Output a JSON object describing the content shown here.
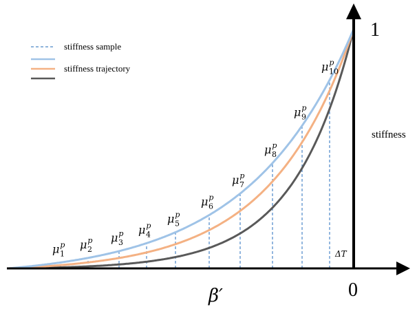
{
  "figure": {
    "legend": [
      {
        "label": "stiffness sample",
        "color": "#4a86c8",
        "style": "dashed"
      },
      {
        "label": "stiffness trajectory",
        "color": "#9fc3e7",
        "style": "solid"
      },
      {
        "label": "",
        "color": "#f4b183",
        "style": "solid"
      },
      {
        "label": "",
        "color": "#595959",
        "style": "solid"
      }
    ],
    "y_axis_label": "stiffness",
    "y_tick_top": "1",
    "x_axis_label": "β′",
    "x_origin_label": "0",
    "delta_label": "ΔT",
    "samples": [
      {
        "sym": "μ",
        "sub": "1",
        "sup": "p"
      },
      {
        "sym": "μ",
        "sub": "2",
        "sup": "p"
      },
      {
        "sym": "μ",
        "sub": "3",
        "sup": "p"
      },
      {
        "sym": "μ",
        "sub": "4",
        "sup": "p"
      },
      {
        "sym": "μ",
        "sub": "5",
        "sup": "p"
      },
      {
        "sym": "μ",
        "sub": "6",
        "sup": "p"
      },
      {
        "sym": "μ",
        "sub": "7",
        "sup": "p"
      },
      {
        "sym": "μ",
        "sub": "8",
        "sup": "p"
      },
      {
        "sym": "μ",
        "sub": "9",
        "sup": "p"
      },
      {
        "sym": "μ",
        "sub": "10",
        "sup": "p"
      }
    ],
    "colors": {
      "axis": "#000000",
      "sample_line": "#4a86c8",
      "curve_blue": "#9fc3e7",
      "curve_orange": "#f4b183",
      "curve_gray": "#595959"
    }
  }
}
